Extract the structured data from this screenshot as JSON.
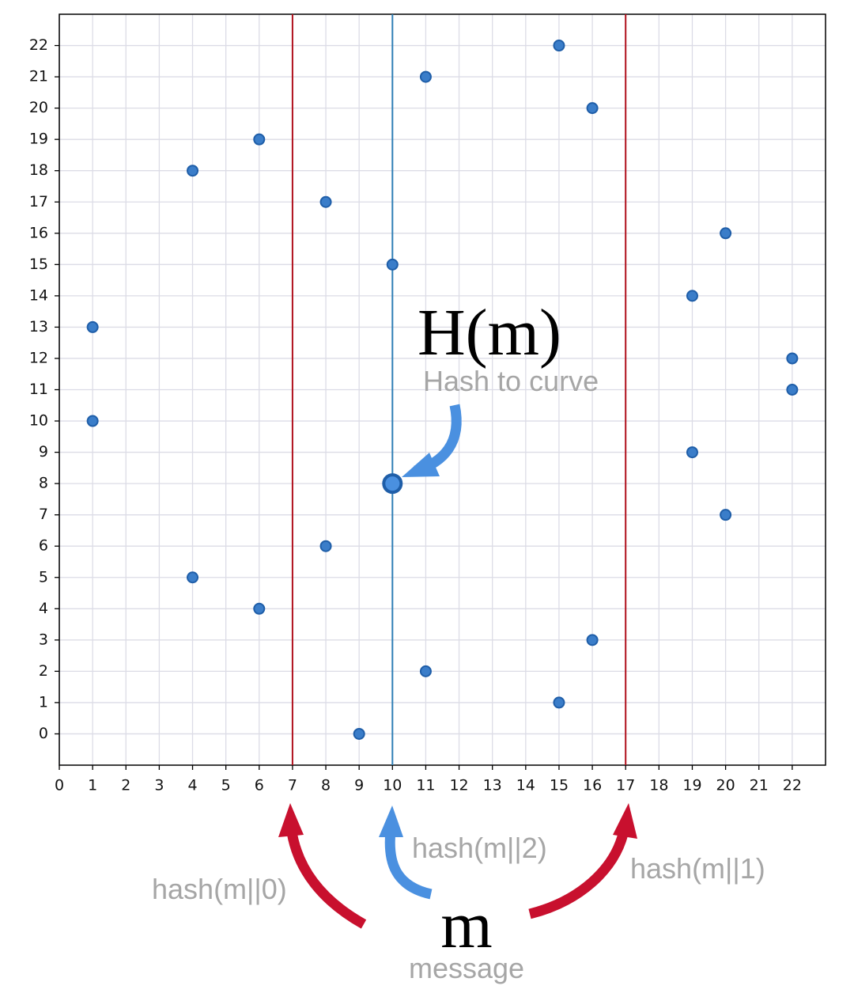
{
  "chart_data": {
    "type": "scatter",
    "x": [
      1,
      1,
      4,
      4,
      6,
      6,
      8,
      8,
      9,
      10,
      11,
      11,
      15,
      15,
      16,
      16,
      19,
      19,
      20,
      20,
      22,
      22
    ],
    "y": [
      13,
      10,
      18,
      5,
      19,
      4,
      17,
      6,
      0,
      15,
      21,
      2,
      22,
      1,
      20,
      3,
      14,
      9,
      16,
      7,
      12,
      11
    ],
    "color": "#3a7dc9",
    "highlight": {
      "x": 10,
      "y": 8
    },
    "vlines": [
      {
        "x": 7,
        "color": "#b0101c"
      },
      {
        "x": 10,
        "color": "#2f7fb5"
      },
      {
        "x": 17,
        "color": "#b0101c"
      }
    ],
    "xlim": [
      0,
      23
    ],
    "ylim": [
      -1,
      23
    ],
    "xticks": [
      0,
      1,
      2,
      3,
      4,
      5,
      6,
      7,
      8,
      9,
      10,
      11,
      12,
      13,
      14,
      15,
      16,
      17,
      18,
      19,
      20,
      21,
      22
    ],
    "yticks": [
      0,
      1,
      2,
      3,
      4,
      5,
      6,
      7,
      8,
      9,
      10,
      11,
      12,
      13,
      14,
      15,
      16,
      17,
      18,
      19,
      20,
      21,
      22
    ],
    "grid": true,
    "annotations": {
      "point_label": "H(m)",
      "point_caption": "Hash to curve",
      "hash0": "hash(m||0)",
      "hash2": "hash(m||2)",
      "hash1": "hash(m||1)",
      "message_symbol": "m",
      "message_caption": "message"
    }
  }
}
